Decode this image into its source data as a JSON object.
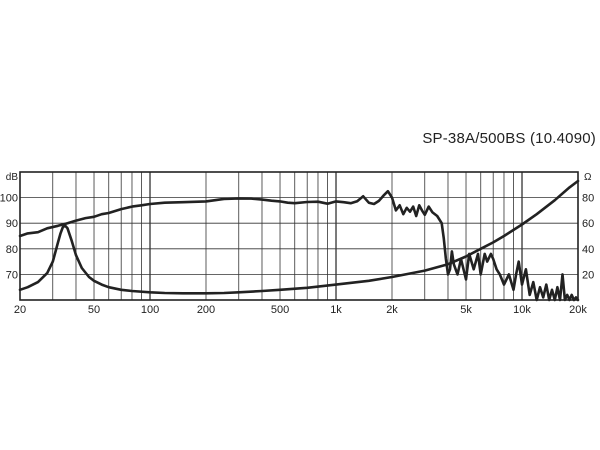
{
  "chart_data": {
    "type": "line",
    "title": "SP-38A/500BS  (10.4090)",
    "x_scale": "log",
    "xlim": [
      20,
      20000
    ],
    "x_ticks": [
      20,
      50,
      100,
      200,
      500,
      1000,
      2000,
      5000,
      10000,
      20000
    ],
    "x_tick_labels": [
      "20",
      "50",
      "100",
      "200",
      "500",
      "1k",
      "2k",
      "5k",
      "10k",
      "20k"
    ],
    "y_left": {
      "unit": "dB",
      "lim": [
        60,
        110
      ],
      "ticks": [
        70,
        80,
        90,
        100
      ],
      "tick_labels": [
        "70",
        "80",
        "90",
        "100"
      ]
    },
    "y_right": {
      "unit": "Ω",
      "lim": [
        0,
        100
      ],
      "ticks": [
        20,
        40,
        60,
        80
      ],
      "tick_labels": [
        "20",
        "40",
        "60",
        "80"
      ]
    },
    "grid": true,
    "series": [
      {
        "axis": "left",
        "color": "#222222",
        "x": [
          20,
          22,
          25,
          28,
          32,
          36,
          40,
          45,
          50,
          55,
          60,
          70,
          80,
          90,
          100,
          120,
          150,
          200,
          250,
          300,
          350,
          400,
          450,
          500,
          550,
          600,
          700,
          800,
          900,
          1000,
          1100,
          1200,
          1300,
          1400,
          1500,
          1600,
          1700,
          1800,
          1900,
          2000,
          2100,
          2200,
          2300,
          2400,
          2500,
          2600,
          2700,
          2800,
          2900,
          3000,
          3150,
          3300,
          3500,
          3700,
          3800,
          3900,
          4000,
          4100,
          4200,
          4300,
          4500,
          4700,
          5000,
          5200,
          5500,
          5800,
          6000,
          6300,
          6500,
          6800,
          7000,
          7300,
          7600,
          8000,
          8500,
          9000,
          9300,
          9600,
          10000,
          10500,
          11000,
          11500,
          12000,
          12500,
          13000,
          13500,
          14000,
          14500,
          15000,
          15500,
          16000,
          16500,
          17000,
          17500,
          18000,
          18500,
          19000,
          19500,
          20000
        ],
        "y": [
          85,
          86,
          86.5,
          88,
          89,
          90,
          91,
          92,
          92.5,
          93.5,
          94,
          95.5,
          96.5,
          97,
          97.5,
          98,
          98.2,
          98.5,
          99.5,
          99.7,
          99.6,
          99.2,
          98.8,
          98.5,
          98,
          97.8,
          98.3,
          98.4,
          97.6,
          98.5,
          98.2,
          97.8,
          98.6,
          100.5,
          98,
          97.5,
          98.7,
          100.8,
          102.5,
          100,
          95,
          97,
          93.5,
          96,
          94.5,
          96.5,
          92.8,
          97,
          95,
          93.3,
          96.5,
          94.2,
          92.8,
          90,
          84,
          76,
          70,
          72,
          79,
          74,
          70,
          76,
          68,
          78,
          72,
          78,
          70,
          78,
          75,
          78,
          76,
          72,
          70,
          66,
          70,
          64,
          70,
          75,
          66,
          72,
          62,
          67,
          60,
          65,
          61,
          66,
          59,
          64,
          60,
          65,
          59,
          70,
          60,
          62,
          59.5,
          62,
          59,
          61,
          60
        ]
      },
      {
        "axis": "right",
        "color": "#222222",
        "x": [
          20,
          22,
          25,
          28,
          30,
          32,
          33,
          34,
          35,
          36,
          38,
          40,
          43,
          47,
          50,
          55,
          60,
          70,
          80,
          100,
          120,
          150,
          200,
          250,
          300,
          400,
          500,
          700,
          1000,
          1500,
          2000,
          3000,
          4000,
          5000,
          6000,
          7000,
          8000,
          10000,
          12000,
          15000,
          18000,
          20000
        ],
        "y": [
          8,
          10,
          14,
          21,
          30,
          45,
          52,
          57,
          58,
          56,
          46,
          35,
          25,
          18,
          15,
          12,
          10,
          8,
          7,
          6,
          5.5,
          5.2,
          5.2,
          5.5,
          6,
          7,
          8,
          9.5,
          12,
          15,
          18,
          23,
          28,
          34,
          40,
          45,
          50,
          59,
          67,
          78,
          88,
          93
        ]
      }
    ]
  }
}
